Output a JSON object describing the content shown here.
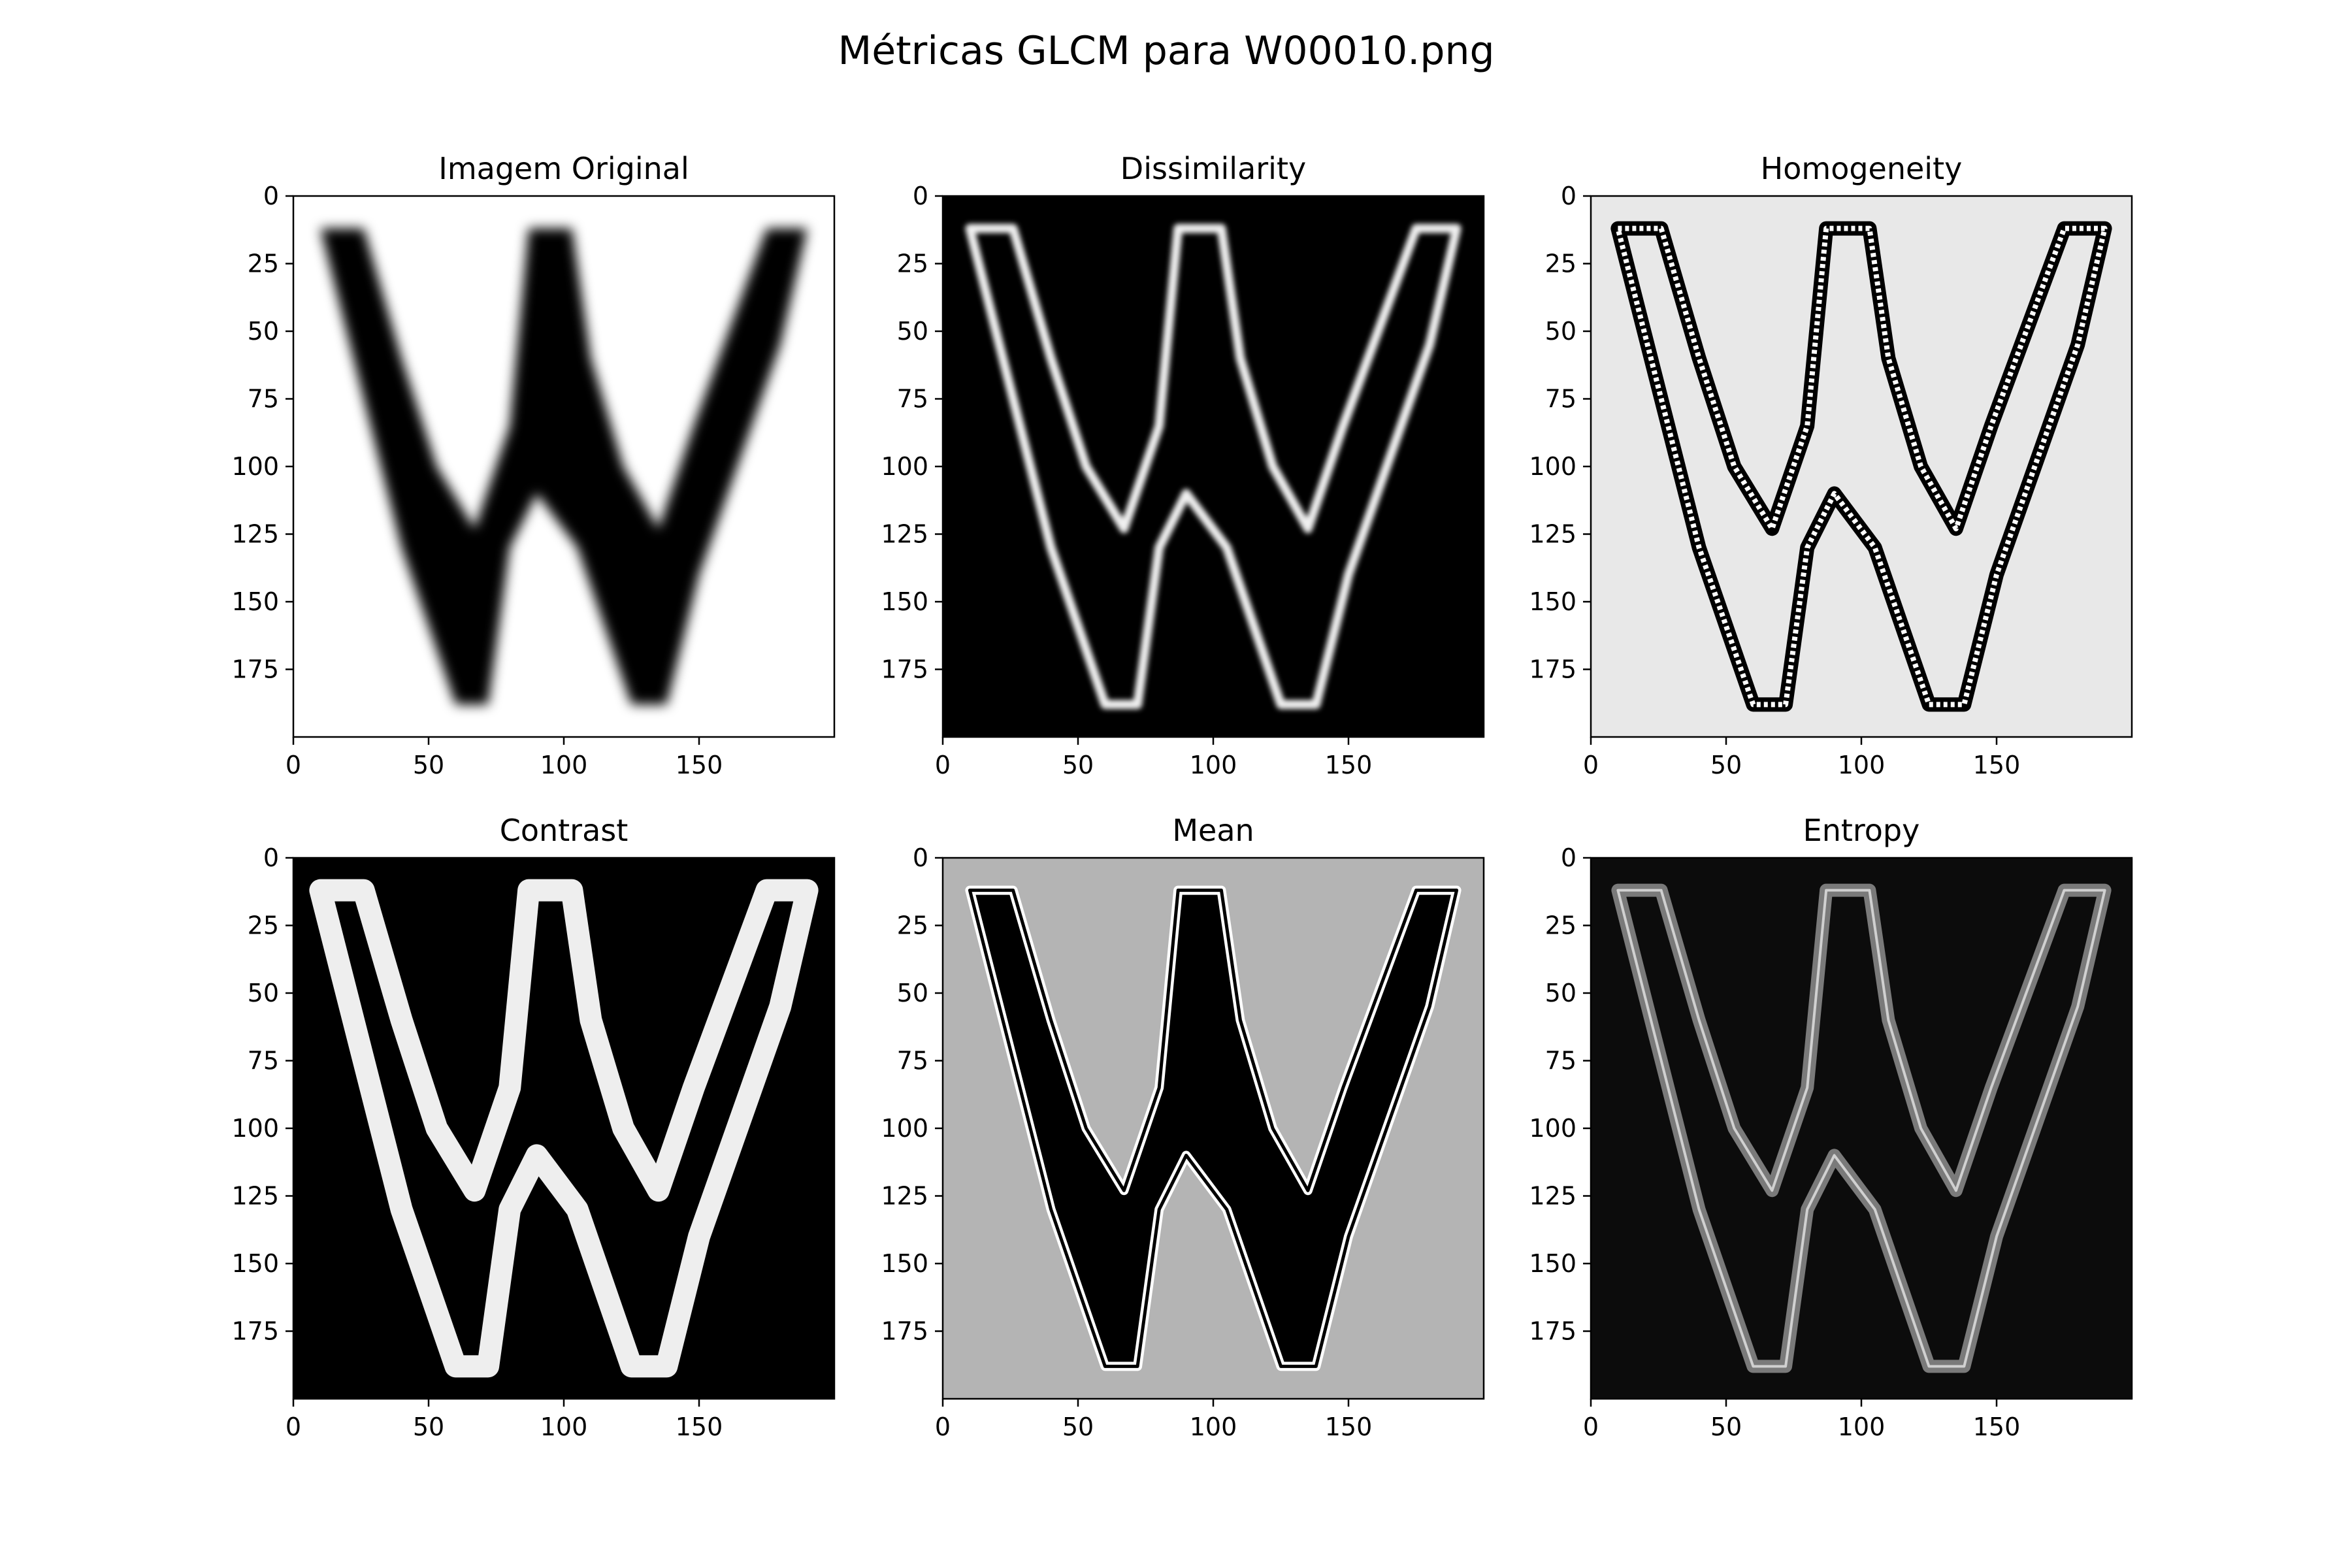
{
  "figure": {
    "suptitle": "Métricas GLCM para W00010.png"
  },
  "chart_data": [
    {
      "type": "heatmap",
      "title": "Imagem Original",
      "xticks": [
        0,
        50,
        100,
        150
      ],
      "yticks": [
        0,
        25,
        50,
        75,
        100,
        125,
        150,
        175
      ],
      "xlim": [
        0,
        200
      ],
      "ylim": [
        200,
        0
      ],
      "colormap": "gray",
      "background": "#ffffff",
      "stroke_color": "#000000",
      "style": "solid-blurred"
    },
    {
      "type": "heatmap",
      "title": "Dissimilarity",
      "xticks": [
        0,
        50,
        100,
        150
      ],
      "yticks": [
        0,
        25,
        50,
        75,
        100,
        125,
        150,
        175
      ],
      "xlim": [
        0,
        200
      ],
      "ylim": [
        200,
        0
      ],
      "colormap": "gray",
      "background": "#000000",
      "stroke_color": "#f0f0f0",
      "style": "thin-edges"
    },
    {
      "type": "heatmap",
      "title": "Homogeneity",
      "xticks": [
        0,
        50,
        100,
        150
      ],
      "yticks": [
        0,
        25,
        50,
        75,
        100,
        125,
        150,
        175
      ],
      "xlim": [
        0,
        200
      ],
      "ylim": [
        200,
        0
      ],
      "colormap": "gray",
      "background": "#e8e8e8",
      "stroke_color": "#000000",
      "style": "striped-edges"
    },
    {
      "type": "heatmap",
      "title": "Contrast",
      "xticks": [
        0,
        50,
        100,
        150
      ],
      "yticks": [
        0,
        25,
        50,
        75,
        100,
        125,
        150,
        175
      ],
      "xlim": [
        0,
        200
      ],
      "ylim": [
        200,
        0
      ],
      "colormap": "gray",
      "background": "#000000",
      "stroke_color": "#eeeeee",
      "style": "thick-edges"
    },
    {
      "type": "heatmap",
      "title": "Mean",
      "xticks": [
        0,
        50,
        100,
        150
      ],
      "yticks": [
        0,
        25,
        50,
        75,
        100,
        125,
        150,
        175
      ],
      "xlim": [
        0,
        200
      ],
      "ylim": [
        200,
        0
      ],
      "colormap": "gray",
      "background": "#b4b4b4",
      "stroke_color": "#000000",
      "style": "filled-outlined"
    },
    {
      "type": "heatmap",
      "title": "Entropy",
      "xticks": [
        0,
        50,
        100,
        150
      ],
      "yticks": [
        0,
        25,
        50,
        75,
        100,
        125,
        150,
        175
      ],
      "xlim": [
        0,
        200
      ],
      "ylim": [
        200,
        0
      ],
      "colormap": "gray",
      "background": "#0c0c0c",
      "stroke_color": "#7a7a7a",
      "style": "outline-glow"
    }
  ]
}
